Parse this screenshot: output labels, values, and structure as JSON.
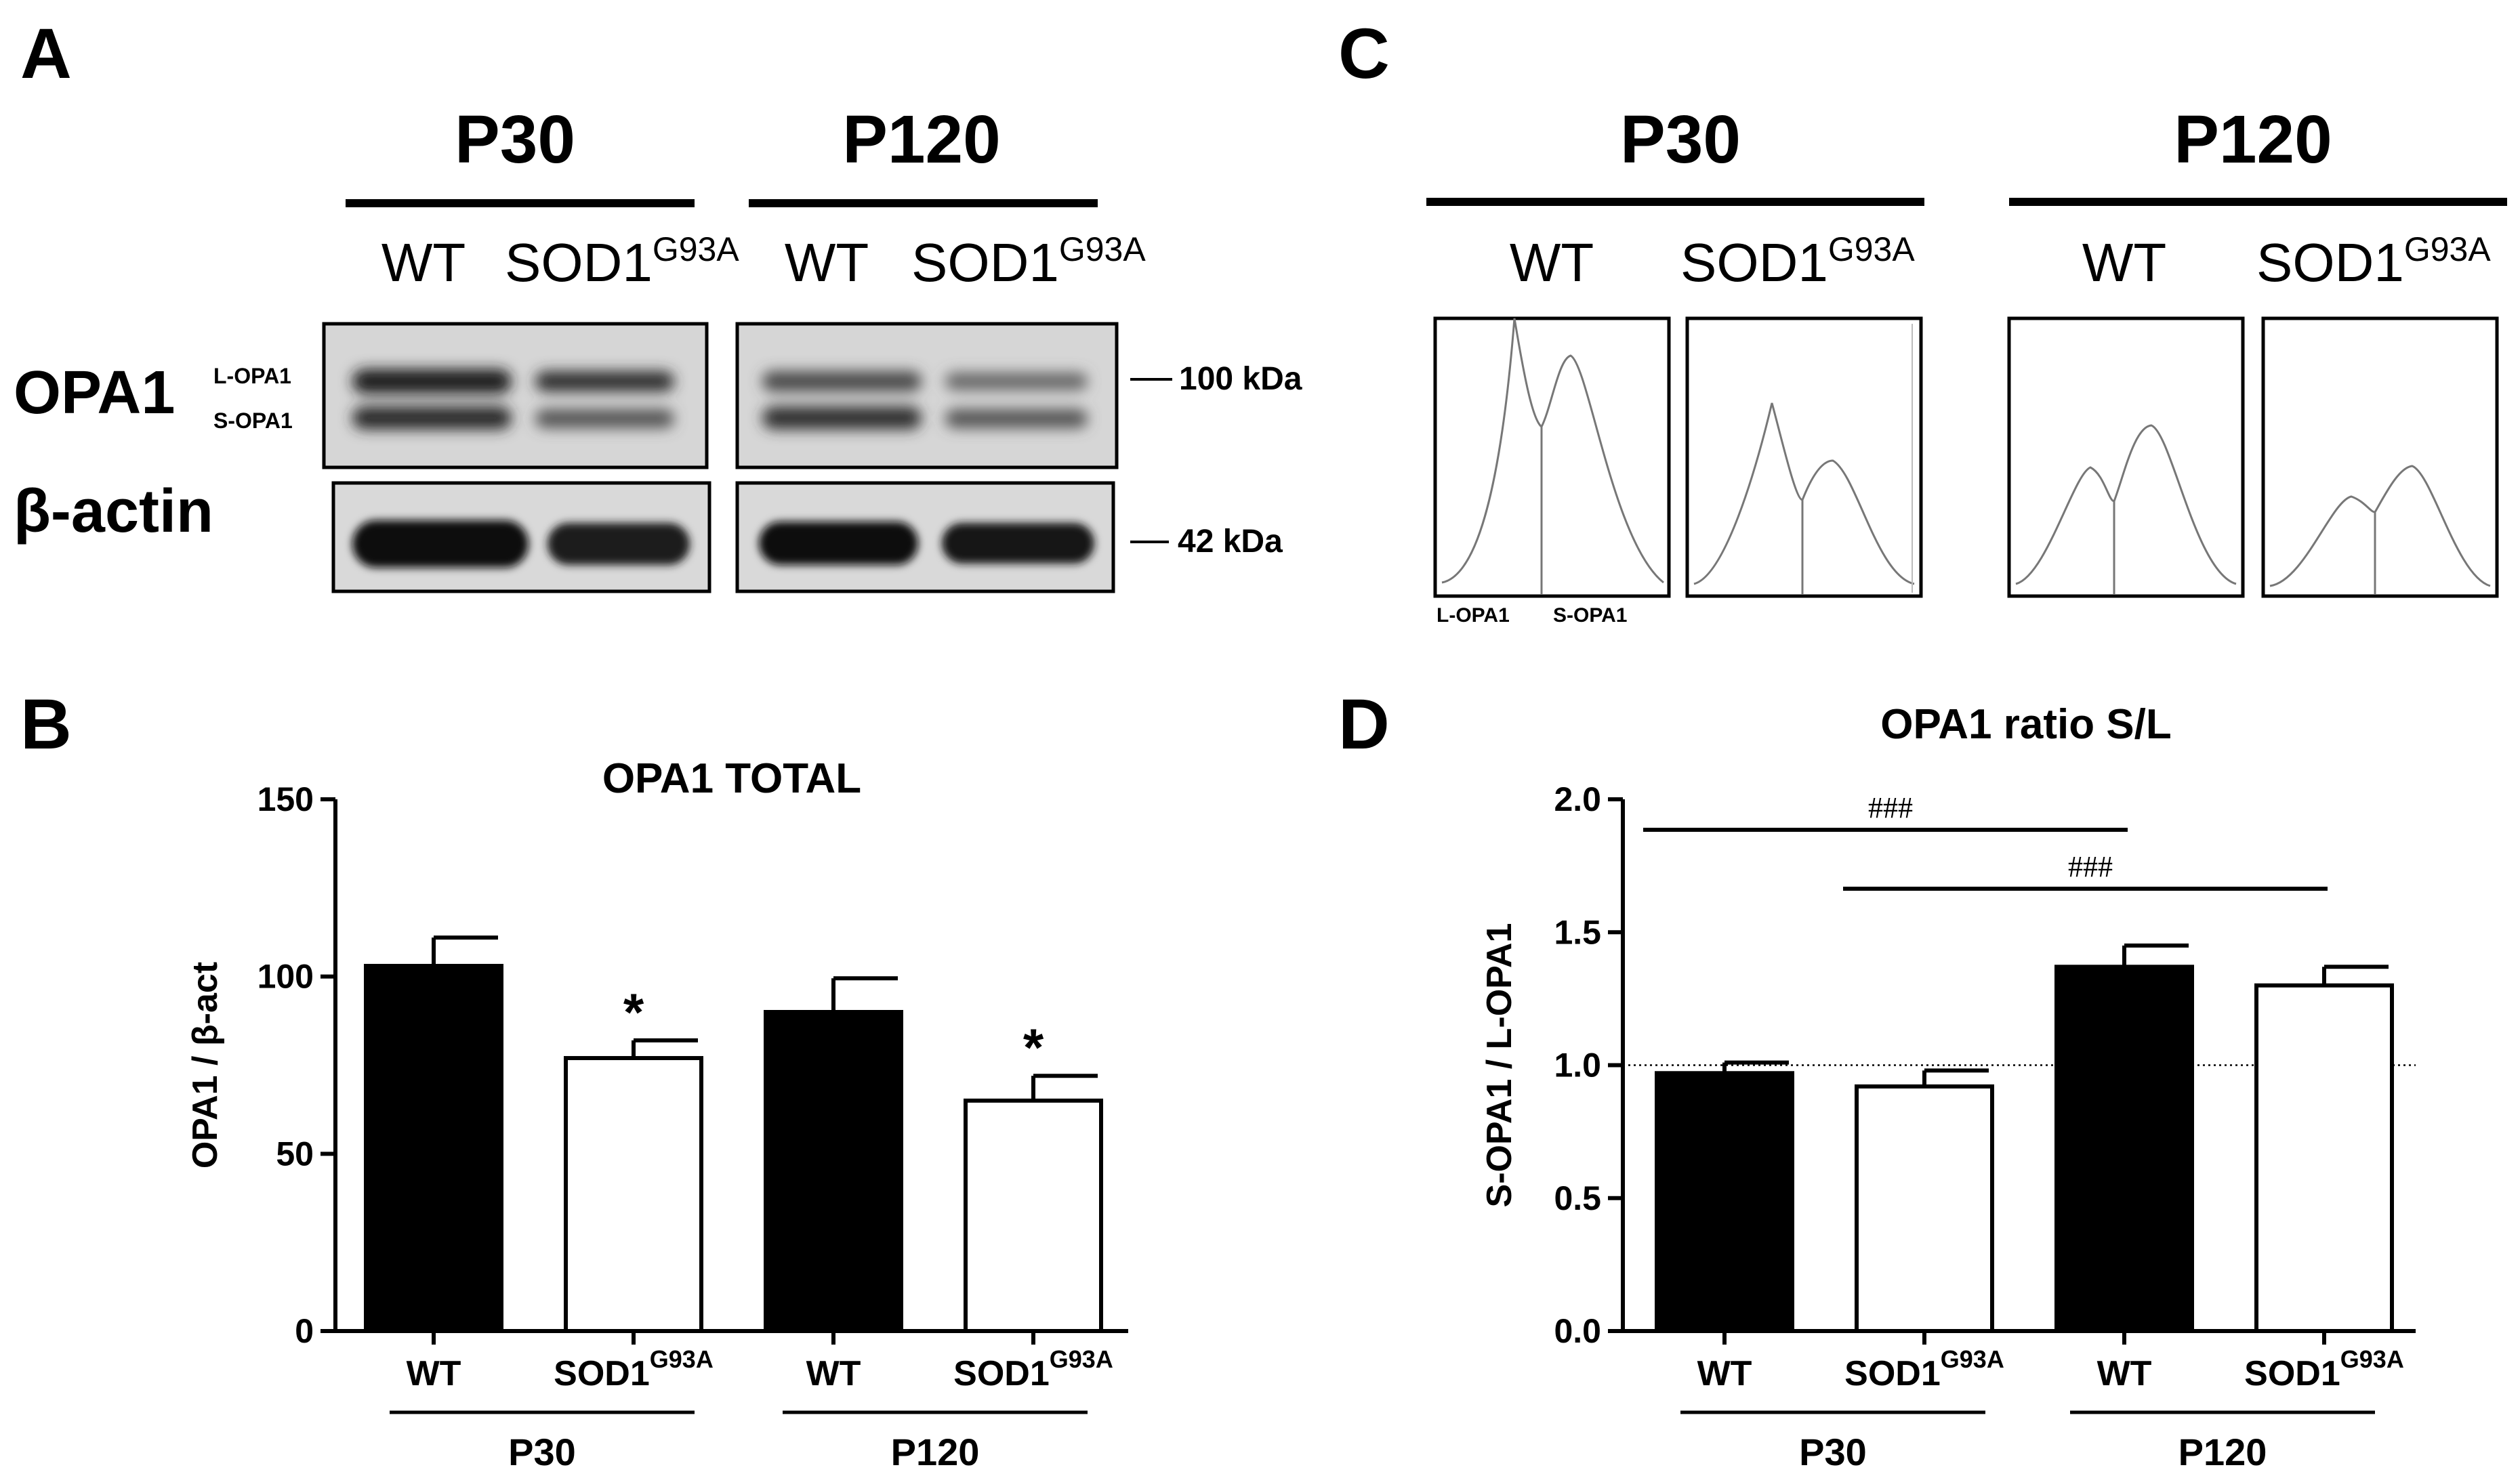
{
  "panels": {
    "A": {
      "letter": "A",
      "groups": [
        {
          "label": "P30",
          "lanes": [
            "WT",
            "SOD1",
            "G93A"
          ]
        },
        {
          "label": "P120",
          "lanes": [
            "WT",
            "SOD1",
            "G93A"
          ]
        }
      ],
      "row1_label": "OPA1",
      "row2_label": "β-actin",
      "band_labels": [
        "L-OPA1",
        "S-OPA1"
      ],
      "markers": [
        "100 kDa",
        "42 kDa"
      ]
    },
    "C": {
      "letter": "C",
      "groups": [
        {
          "label": "P30",
          "lanes": [
            "WT",
            "SOD1",
            "G93A"
          ]
        },
        {
          "label": "P120",
          "lanes": [
            "WT",
            "SOD1",
            "G93A"
          ]
        }
      ],
      "peak_labels": [
        "L-OPA1",
        "S-OPA1"
      ]
    },
    "B": {
      "letter": "B"
    },
    "D": {
      "letter": "D"
    }
  },
  "chart_data": [
    {
      "panel": "B",
      "type": "bar",
      "title": "OPA1 TOTAL",
      "ylabel": "OPA1 / β-act",
      "ylim": [
        0,
        150
      ],
      "yticks": [
        0,
        50,
        100,
        150
      ],
      "categories": [
        "WT",
        "SOD1G93A",
        "WT",
        "SOD1G93A"
      ],
      "category_display": [
        {
          "main": "WT",
          "sup": ""
        },
        {
          "main": "SOD1",
          "sup": "G93A"
        },
        {
          "main": "WT",
          "sup": ""
        },
        {
          "main": "SOD1",
          "sup": "G93A"
        }
      ],
      "groups": [
        "P30",
        "P120"
      ],
      "values": [
        103,
        77,
        90,
        65
      ],
      "errors": [
        8,
        5,
        9.5,
        7
      ],
      "fills": [
        "#000000",
        "#ffffff",
        "#000000",
        "#ffffff"
      ],
      "annotations": [
        "",
        "*",
        "",
        "*"
      ]
    },
    {
      "panel": "D",
      "type": "bar",
      "title": "OPA1 ratio S/L",
      "ylabel": "S-OPA1 / L-OPA1",
      "ylim": [
        0,
        2.0
      ],
      "yticks": [
        "0.0",
        "0.5",
        "1.0",
        "1.5",
        "2.0"
      ],
      "categories": [
        "WT",
        "SOD1G93A",
        "WT",
        "SOD1G93A"
      ],
      "category_display": [
        {
          "main": "WT",
          "sup": ""
        },
        {
          "main": "SOD1",
          "sup": "G93A"
        },
        {
          "main": "WT",
          "sup": ""
        },
        {
          "main": "SOD1",
          "sup": "G93A"
        }
      ],
      "groups": [
        "P30",
        "P120"
      ],
      "values": [
        0.97,
        0.92,
        1.37,
        1.3
      ],
      "errors": [
        0.04,
        0.06,
        0.08,
        0.07
      ],
      "fills": [
        "#000000",
        "#ffffff",
        "#000000",
        "#ffffff"
      ],
      "reference_line": 1.0,
      "brackets": [
        {
          "from": 0,
          "to": 2,
          "label": "###"
        },
        {
          "from": 1,
          "to": 3,
          "label": "###"
        }
      ]
    }
  ]
}
